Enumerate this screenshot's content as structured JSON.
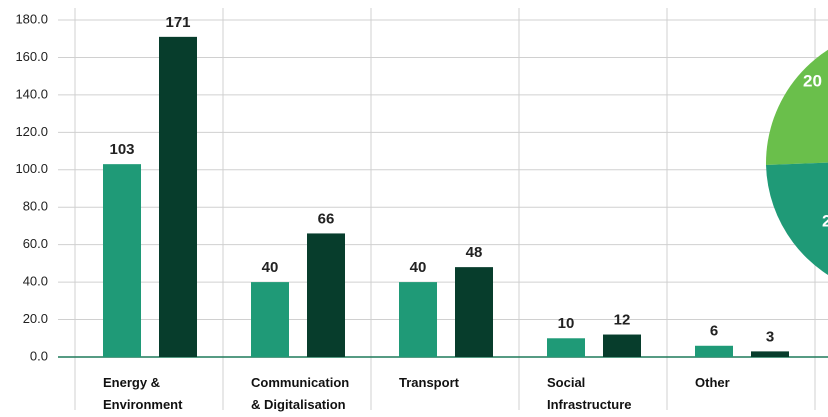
{
  "chart_data": {
    "type": "bar",
    "categories": [
      "Energy &\nEnvironment",
      "Communication\n& Digitalisation",
      "Transport",
      "Social\nInfrastructure",
      "Other"
    ],
    "series": [
      {
        "color": "#1f9a77",
        "values": [
          103,
          40,
          40,
          10,
          6
        ]
      },
      {
        "color": "#073d2c",
        "values": [
          171,
          66,
          48,
          12,
          3
        ]
      }
    ],
    "ylim": [
      0,
      180
    ],
    "yticks": [
      {
        "value": 0,
        "label": "0.0"
      },
      {
        "value": 20,
        "label": "20.0"
      },
      {
        "value": 40,
        "label": "40.0"
      },
      {
        "value": 60,
        "label": "60.0"
      },
      {
        "value": 80,
        "label": "80.0"
      },
      {
        "value": 100,
        "label": "100.0"
      },
      {
        "value": 120,
        "label": "120.0"
      },
      {
        "value": 140,
        "label": "140.0"
      },
      {
        "value": 160,
        "label": "160.0"
      },
      {
        "value": 180,
        "label": "180.0"
      }
    ],
    "grid": true,
    "annotations": [
      "20",
      "2"
    ]
  }
}
